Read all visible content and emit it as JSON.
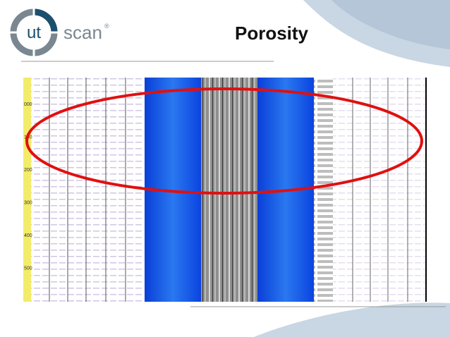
{
  "header": {
    "logo_short": "ut",
    "logo_word": "scan",
    "logo_mark": "®",
    "title": "Porosity"
  },
  "log_image": {
    "depth_labels": [
      "000",
      "100",
      "200",
      "300",
      "400",
      "500"
    ]
  }
}
